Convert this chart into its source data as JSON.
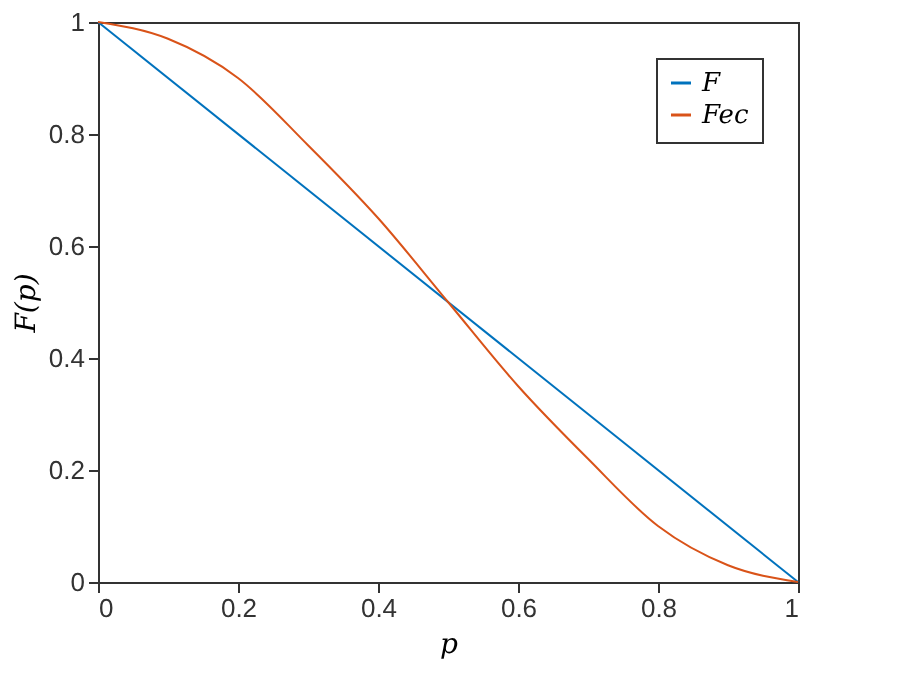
{
  "chart_data": {
    "type": "line",
    "xlabel": "p",
    "ylabel": "F(p)",
    "series": [
      {
        "name": "F",
        "color": "#0072bd",
        "x": [
          0,
          1
        ],
        "values": [
          1,
          0
        ]
      },
      {
        "name": "Fec",
        "color": "#d95319",
        "x": [
          0,
          0.1,
          0.2,
          0.3,
          0.4,
          0.5,
          0.6,
          0.7,
          0.8,
          0.9,
          1
        ],
        "values": [
          1,
          0.97,
          0.9,
          0.78,
          0.65,
          0.5,
          0.35,
          0.22,
          0.1,
          0.03,
          0
        ]
      }
    ],
    "xlim": [
      0,
      1
    ],
    "ylim": [
      0,
      1
    ],
    "xticks": [
      0,
      0.2,
      0.4,
      0.6,
      0.8,
      1
    ],
    "yticks": [
      0,
      0.2,
      0.4,
      0.6,
      0.8,
      1
    ],
    "grid": false,
    "legend": "top right",
    "marker": "none",
    "line_style": "solid"
  }
}
